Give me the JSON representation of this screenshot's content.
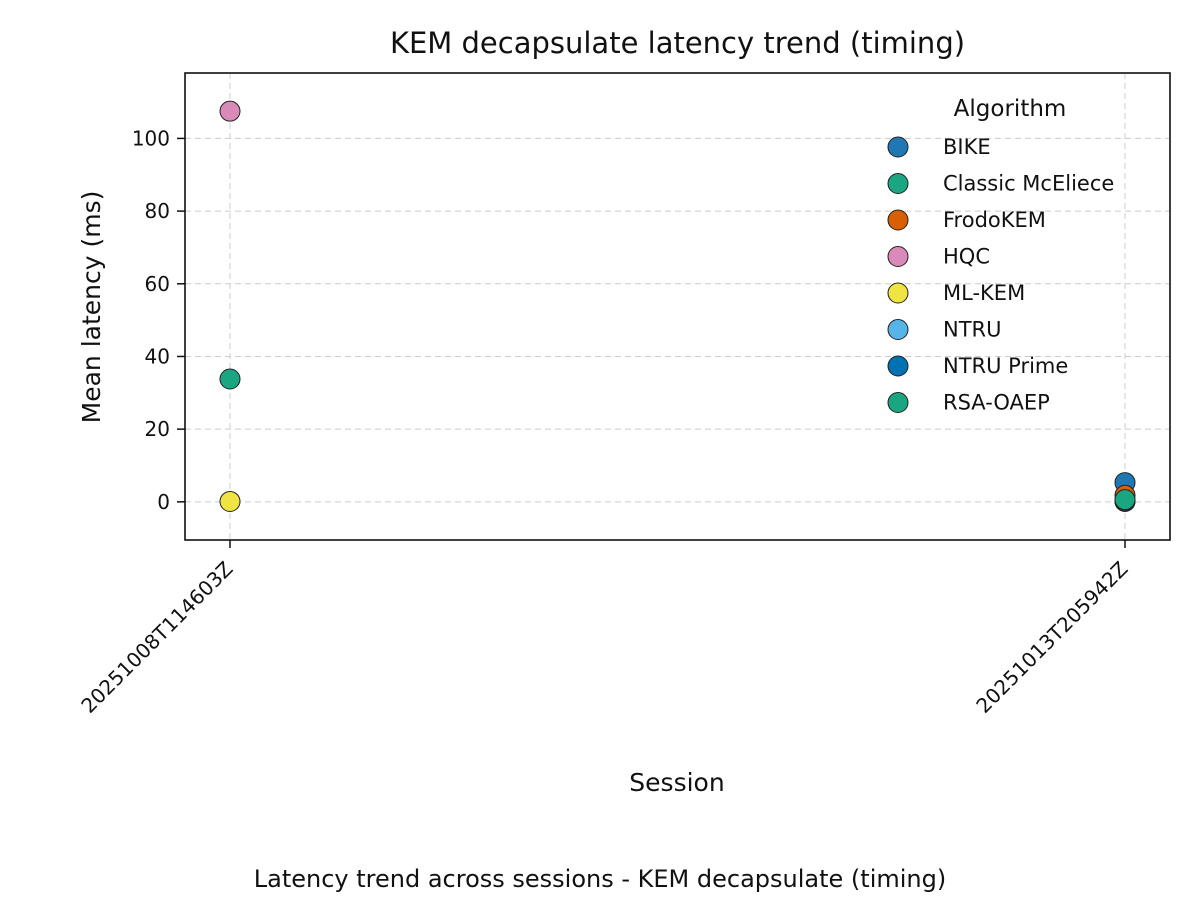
{
  "chart_data": {
    "type": "scatter",
    "title": "KEM decapsulate latency trend (timing)",
    "xlabel": "Session",
    "ylabel": "Mean latency (ms)",
    "caption": "Latency trend across sessions - KEM decapsulate (timing)",
    "categories": [
      "20251008T114603Z",
      "20251013T205942Z"
    ],
    "ylim": [
      -10.5,
      118
    ],
    "yticks": [
      0,
      20,
      40,
      60,
      80,
      100
    ],
    "grid": true,
    "legend": {
      "title": "Algorithm",
      "placement": "top-right"
    },
    "series": [
      {
        "name": "BIKE",
        "color": "#1f78b4",
        "points": [
          {
            "x": "20251013T205942Z",
            "y": 5.3
          }
        ]
      },
      {
        "name": "Classic McEliece",
        "color": "#1aa681",
        "points": [
          {
            "x": "20251008T114603Z",
            "y": 33.8
          }
        ]
      },
      {
        "name": "FrodoKEM",
        "color": "#d95f02",
        "points": [
          {
            "x": "20251013T205942Z",
            "y": 1.8
          }
        ]
      },
      {
        "name": "HQC",
        "color": "#d98ab8",
        "points": [
          {
            "x": "20251008T114603Z",
            "y": 107.5
          }
        ]
      },
      {
        "name": "ML-KEM",
        "color": "#f0e442",
        "points": [
          {
            "x": "20251008T114603Z",
            "y": 0.1
          },
          {
            "x": "20251013T205942Z",
            "y": 0.1
          }
        ]
      },
      {
        "name": "NTRU",
        "color": "#56b4e9",
        "points": [
          {
            "x": "20251013T205942Z",
            "y": 0.2
          }
        ]
      },
      {
        "name": "NTRU Prime",
        "color": "#0072b2",
        "points": [
          {
            "x": "20251013T205942Z",
            "y": 0.3
          }
        ]
      },
      {
        "name": "RSA-OAEP",
        "color": "#1aa681",
        "points": [
          {
            "x": "20251013T205942Z",
            "y": 0.6
          }
        ]
      }
    ]
  }
}
